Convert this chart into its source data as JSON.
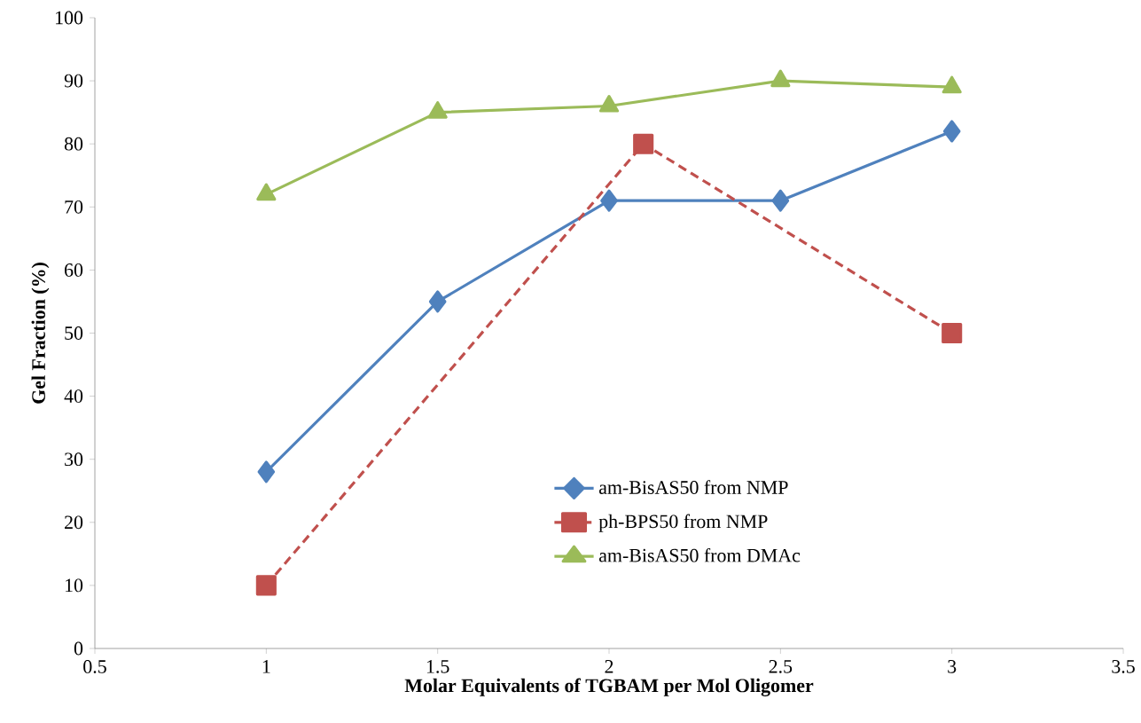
{
  "chart_data": {
    "type": "line",
    "xlabel": "Molar Equivalents of TGBAM per Mol Oligomer",
    "ylabel": "Gel Fraction (%)",
    "x": [
      1,
      1.5,
      2,
      2.5,
      3
    ],
    "series": [
      {
        "name": "am-BisAS50 from NMP",
        "color": "#4f81bd",
        "values": [
          28,
          55,
          71,
          71,
          82
        ],
        "marker": "diamond",
        "line_style": "solid"
      },
      {
        "name": "ph-BPS50 from NMP",
        "color": "#c0504d",
        "x": [
          1,
          2.1,
          3
        ],
        "values": [
          10,
          80,
          50
        ],
        "marker": "square",
        "line_style": "dashed"
      },
      {
        "name": "am-BisAS50 from DMAc",
        "color": "#9bbb59",
        "values": [
          72,
          85,
          86,
          90,
          89
        ],
        "marker": "triangle",
        "line_style": "solid"
      }
    ],
    "xlim": [
      0.5,
      3.5
    ],
    "xticks": [
      0.5,
      1,
      1.5,
      2,
      2.5,
      3,
      3.5
    ],
    "ylim": [
      0,
      100
    ],
    "yticks": [
      0,
      10,
      20,
      30,
      40,
      50,
      60,
      70,
      80,
      90,
      100
    ],
    "grid": false,
    "legend": "bottom"
  }
}
